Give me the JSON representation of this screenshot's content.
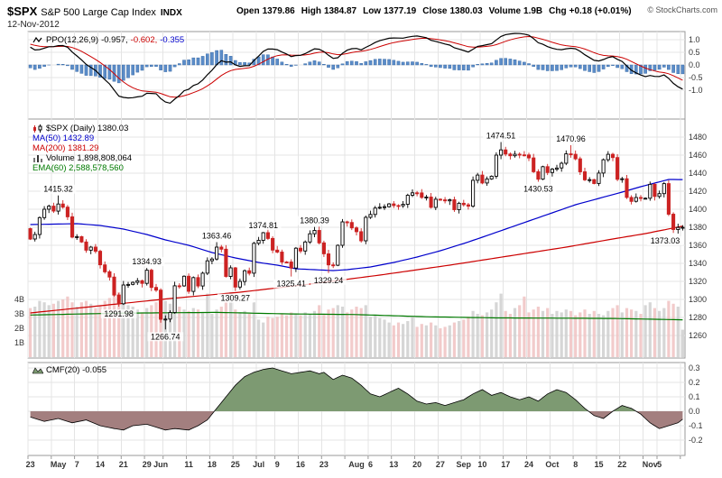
{
  "header": {
    "symbol": "$SPX",
    "name": "S&P 500 Large Cap Index",
    "exchange": "INDX",
    "date": "12-Nov-2012",
    "copyright": "© StockCharts.com",
    "quote": [
      {
        "label": "Open",
        "value": "1379.86"
      },
      {
        "label": "High",
        "value": "1384.87"
      },
      {
        "label": "Low",
        "value": "1377.19"
      },
      {
        "label": "Close",
        "value": "1380.03"
      },
      {
        "label": "Volume",
        "value": "1.9B"
      },
      {
        "label": "Chg",
        "value": "+0.18 (+0.01%)"
      }
    ]
  },
  "legends": {
    "ppo": {
      "label": "PPO(12,26,9)",
      "v1": "-0.957,",
      "v2": "-0.602,",
      "v3": "-0.355"
    },
    "main": {
      "spx": "$SPX (Daily) 1380.03",
      "ma50": "MA(50) 1432.89",
      "ma200": "MA(200) 1381.29",
      "volume": "Volume 1,898,808,064",
      "ema": "EMA(60) 2,588,578,560"
    },
    "cmf": "CMF(20) -0.055"
  },
  "chart_data": {
    "type": "candlestick",
    "title": "$SPX S&P 500 Large Cap Index",
    "panels": [
      "PPO(12,26,9)",
      "price+volume",
      "CMF(20)"
    ],
    "axes": {
      "ppo": {
        "ticks": [
          1.0,
          0.5,
          0.0,
          -0.5,
          -1.0
        ]
      },
      "main": {
        "tick_min": 1260,
        "tick_max": 1480,
        "step": 20
      },
      "vol": {
        "ticks": [
          "1B",
          "2B",
          "3B",
          "4B"
        ]
      },
      "cmf": {
        "ticks": [
          0.3,
          0.2,
          0.1,
          0.0,
          -0.1,
          -0.2
        ]
      }
    },
    "x_labels": [
      [
        0,
        "23"
      ],
      [
        6,
        "May"
      ],
      [
        10,
        "7"
      ],
      [
        15,
        "14"
      ],
      [
        20,
        "21"
      ],
      [
        25,
        "29"
      ],
      [
        28,
        "Jun"
      ],
      [
        34,
        "11"
      ],
      [
        39,
        "18"
      ],
      [
        44,
        "25"
      ],
      [
        49,
        "Jul"
      ],
      [
        53,
        "9"
      ],
      [
        58,
        "16"
      ],
      [
        63,
        "23"
      ],
      [
        70,
        "Aug"
      ],
      [
        73,
        "6"
      ],
      [
        78,
        "13"
      ],
      [
        83,
        "20"
      ],
      [
        88,
        "27"
      ],
      [
        93,
        "Sep"
      ],
      [
        97,
        "10"
      ],
      [
        102,
        "17"
      ],
      [
        107,
        "24"
      ],
      [
        112,
        "Oct"
      ],
      [
        117,
        "8"
      ],
      [
        122,
        "15"
      ],
      [
        127,
        "22"
      ],
      [
        133,
        "Nov"
      ],
      [
        135,
        "5"
      ]
    ],
    "week_starts": [
      0,
      5,
      10,
      15,
      20,
      25,
      29,
      34,
      39,
      44,
      49,
      53,
      58,
      63,
      68,
      73,
      78,
      83,
      88,
      93,
      97,
      102,
      107,
      112,
      117,
      122,
      127,
      132,
      135,
      140
    ],
    "price": {
      "prev_close": 1378.53,
      "closes": [
        1366.94,
        1371.97,
        1390.69,
        1399.98,
        1403.36,
        1397.91,
        1405.82,
        1402.31,
        1391.57,
        1369.1,
        1369.58,
        1363.72,
        1354.58,
        1357.99,
        1353.39,
        1338.35,
        1330.66,
        1324.8,
        1304.86,
        1295.22,
        1315.99,
        1316.63,
        1318.86,
        1320.68,
        1317.82,
        1332.42,
        1313.32,
        1310.33,
        1278.04,
        1278.18,
        1285.5,
        1315.13,
        1314.99,
        1325.66,
        1308.93,
        1324.18,
        1314.88,
        1329.1,
        1342.84,
        1344.78,
        1357.98,
        1355.69,
        1325.51,
        1335.02,
        1313.72,
        1319.99,
        1331.85,
        1329.04,
        1362.16,
        1365.51,
        1374.02,
        1367.58,
        1354.68,
        1352.46,
        1341.47,
        1341.45,
        1334.76,
        1356.78,
        1353.64,
        1363.67,
        1372.78,
        1376.51,
        1362.66,
        1350.52,
        1338.31,
        1337.89,
        1360.02,
        1385.97,
        1385.3,
        1379.32,
        1375.14,
        1365.0,
        1390.99,
        1394.23,
        1401.35,
        1402.22,
        1402.8,
        1405.87,
        1404.11,
        1403.93,
        1405.53,
        1415.51,
        1418.16,
        1418.13,
        1413.17,
        1413.49,
        1402.08,
        1411.13,
        1410.44,
        1409.3,
        1410.49,
        1399.48,
        1406.58,
        1404.94,
        1403.44,
        1432.12,
        1437.92,
        1429.08,
        1433.56,
        1436.56,
        1459.99,
        1465.77,
        1461.19,
        1459.32,
        1461.05,
        1460.26,
        1460.15,
        1456.89,
        1441.59,
        1433.32,
        1447.15,
        1440.67,
        1444.49,
        1445.75,
        1450.99,
        1461.4,
        1460.93,
        1455.88,
        1441.48,
        1432.56,
        1432.84,
        1428.59,
        1440.13,
        1454.92,
        1460.91,
        1457.34,
        1433.19,
        1433.82,
        1413.11,
        1408.75,
        1412.97,
        1411.94,
        1412.16,
        1427.59,
        1414.2,
        1417.26,
        1428.39,
        1394.53,
        1377.51,
        1379.85,
        1380.03
      ],
      "high_overrides": {
        "6": 1415.32,
        "25": 1334.93,
        "40": 1363.46,
        "50": 1374.81,
        "61": 1380.39,
        "101": 1474.51,
        "116": 1470.96
      },
      "low_overrides": {
        "19": 1291.98,
        "29": 1266.74,
        "44": 1309.27,
        "56": 1325.41,
        "64": 1329.24,
        "109": 1430.53,
        "139": 1373.03
      }
    },
    "volume": [
      3.4,
      3.5,
      3.9,
      3.8,
      3.6,
      3.7,
      3.9,
      4.0,
      4.2,
      3.8,
      3.5,
      3.8,
      3.9,
      3.7,
      3.4,
      3.6,
      3.9,
      4.1,
      4.3,
      4.5,
      3.8,
      3.6,
      3.5,
      3.3,
      3.1,
      3.4,
      3.6,
      3.8,
      4.0,
      3.9,
      3.7,
      3.8,
      3.5,
      3.3,
      3.2,
      3.4,
      3.3,
      3.1,
      4.4,
      3.0,
      3.3,
      3.5,
      4.0,
      4.5,
      3.3,
      3.1,
      3.2,
      3.0,
      3.8,
      2.6,
      2.4,
      2.8,
      2.7,
      2.8,
      3.0,
      2.9,
      3.1,
      3.0,
      2.9,
      3.1,
      3.0,
      3.2,
      3.6,
      3.0,
      3.3,
      3.4,
      3.6,
      3.5,
      3.1,
      3.3,
      3.5,
      3.4,
      3.6,
      2.8,
      2.9,
      2.7,
      2.6,
      2.4,
      2.2,
      2.4,
      2.3,
      2.5,
      2.8,
      2.1,
      2.3,
      2.2,
      2.4,
      2.2,
      2.0,
      2.1,
      2.2,
      2.4,
      2.5,
      2.6,
      2.8,
      3.2,
      3.0,
      2.9,
      3.1,
      3.3,
      3.8,
      4.4,
      3.2,
      3.0,
      3.4,
      3.6,
      4.2,
      3.1,
      3.3,
      3.5,
      3.2,
      3.4,
      3.0,
      3.2,
      3.1,
      3.3,
      3.2,
      2.9,
      3.1,
      3.3,
      3.0,
      3.2,
      3.0,
      2.9,
      3.2,
      3.4,
      3.6,
      3.1,
      3.4,
      3.3,
      3.2,
      3.0,
      3.6,
      3.8,
      3.4,
      3.2,
      3.4,
      3.9,
      3.7,
      3.5,
      1.9
    ],
    "ma50": [
      [
        0,
        1383
      ],
      [
        10,
        1384
      ],
      [
        15,
        1382
      ],
      [
        20,
        1378
      ],
      [
        25,
        1372
      ],
      [
        29,
        1366
      ],
      [
        34,
        1360
      ],
      [
        39,
        1352
      ],
      [
        44,
        1346
      ],
      [
        49,
        1341
      ],
      [
        53,
        1338
      ],
      [
        57,
        1334
      ],
      [
        61,
        1333
      ],
      [
        65,
        1332
      ],
      [
        68,
        1333
      ],
      [
        73,
        1336
      ],
      [
        78,
        1341
      ],
      [
        83,
        1347
      ],
      [
        88,
        1354
      ],
      [
        93,
        1362
      ],
      [
        97,
        1369
      ],
      [
        102,
        1378
      ],
      [
        107,
        1387
      ],
      [
        112,
        1396
      ],
      [
        117,
        1405
      ],
      [
        122,
        1412
      ],
      [
        127,
        1419
      ],
      [
        131,
        1425
      ],
      [
        134,
        1429
      ],
      [
        137,
        1433
      ],
      [
        140,
        1432.89
      ]
    ],
    "ma200": [
      [
        0,
        1285
      ],
      [
        15,
        1293
      ],
      [
        30,
        1301
      ],
      [
        45,
        1308
      ],
      [
        60,
        1317
      ],
      [
        75,
        1327
      ],
      [
        90,
        1338
      ],
      [
        105,
        1350
      ],
      [
        115,
        1358
      ],
      [
        125,
        1367
      ],
      [
        132,
        1373
      ],
      [
        140,
        1381.29
      ]
    ],
    "vol_ema60": [
      [
        0,
        2.92
      ],
      [
        20,
        3.05
      ],
      [
        40,
        3.1
      ],
      [
        55,
        3.0
      ],
      [
        70,
        2.95
      ],
      [
        85,
        2.8
      ],
      [
        100,
        2.72
      ],
      [
        115,
        2.7
      ],
      [
        125,
        2.68
      ],
      [
        140,
        2.59
      ]
    ],
    "ppo_seed": {
      "ema12": 1385,
      "ema26": 1373,
      "signal": 0.85
    },
    "ppo_last": {
      "ppo": -0.957,
      "signal": -0.602,
      "hist": -0.355
    },
    "cmf": [
      [
        0,
        -0.04
      ],
      [
        3,
        -0.07
      ],
      [
        6,
        -0.05
      ],
      [
        9,
        -0.08
      ],
      [
        12,
        -0.06
      ],
      [
        15,
        -0.1
      ],
      [
        18,
        -0.12
      ],
      [
        20,
        -0.13
      ],
      [
        22,
        -0.1
      ],
      [
        25,
        -0.09
      ],
      [
        27,
        -0.11
      ],
      [
        29,
        -0.13
      ],
      [
        31,
        -0.12
      ],
      [
        34,
        -0.13
      ],
      [
        36,
        -0.1
      ],
      [
        38,
        -0.06
      ],
      [
        40,
        0.02
      ],
      [
        42,
        0.1
      ],
      [
        44,
        0.18
      ],
      [
        46,
        0.24
      ],
      [
        48,
        0.27
      ],
      [
        50,
        0.29
      ],
      [
        52,
        0.3
      ],
      [
        54,
        0.28
      ],
      [
        56,
        0.26
      ],
      [
        58,
        0.27
      ],
      [
        60,
        0.28
      ],
      [
        62,
        0.26
      ],
      [
        63,
        0.27
      ],
      [
        65,
        0.22
      ],
      [
        67,
        0.25
      ],
      [
        69,
        0.23
      ],
      [
        71,
        0.18
      ],
      [
        73,
        0.12
      ],
      [
        75,
        0.1
      ],
      [
        77,
        0.13
      ],
      [
        79,
        0.16
      ],
      [
        81,
        0.12
      ],
      [
        83,
        0.07
      ],
      [
        85,
        0.05
      ],
      [
        87,
        0.06
      ],
      [
        89,
        0.04
      ],
      [
        91,
        0.06
      ],
      [
        93,
        0.08
      ],
      [
        95,
        0.12
      ],
      [
        97,
        0.15
      ],
      [
        99,
        0.11
      ],
      [
        101,
        0.13
      ],
      [
        103,
        0.1
      ],
      [
        105,
        0.08
      ],
      [
        107,
        0.1
      ],
      [
        109,
        0.07
      ],
      [
        111,
        0.12
      ],
      [
        113,
        0.15
      ],
      [
        115,
        0.13
      ],
      [
        117,
        0.08
      ],
      [
        119,
        0.02
      ],
      [
        121,
        -0.03
      ],
      [
        123,
        -0.05
      ],
      [
        125,
        0.0
      ],
      [
        127,
        0.04
      ],
      [
        129,
        0.02
      ],
      [
        131,
        -0.02
      ],
      [
        133,
        -0.08
      ],
      [
        135,
        -0.12
      ],
      [
        137,
        -0.1
      ],
      [
        139,
        -0.08
      ],
      [
        140,
        -0.055
      ]
    ],
    "cmf_last": -0.055,
    "price_labels": [
      {
        "i": 6,
        "v": 1415.32,
        "side": "above"
      },
      {
        "i": 19,
        "v": 1291.98,
        "side": "below"
      },
      {
        "i": 25,
        "v": 1334.93,
        "side": "above"
      },
      {
        "i": 29,
        "v": 1266.74,
        "side": "below"
      },
      {
        "i": 40,
        "v": 1363.46,
        "side": "above"
      },
      {
        "i": 44,
        "v": 1309.27,
        "side": "below"
      },
      {
        "i": 50,
        "v": 1374.81,
        "side": "above"
      },
      {
        "i": 56,
        "v": 1325.41,
        "side": "below"
      },
      {
        "i": 61,
        "v": 1380.39,
        "side": "above"
      },
      {
        "i": 64,
        "v": 1329.24,
        "side": "below"
      },
      {
        "i": 101,
        "v": 1474.51,
        "side": "above"
      },
      {
        "i": 109,
        "v": 1430.53,
        "side": "below"
      },
      {
        "i": 116,
        "v": 1470.96,
        "side": "above"
      },
      {
        "i": 139,
        "v": 1373.03,
        "side": "below"
      }
    ],
    "colors": {
      "up_candle": "#000000",
      "down_candle": "#cc2222",
      "ma50": "#0000cc",
      "ma200": "#cc0000",
      "vol_ema": "#007a00",
      "vol_up": "#cfcfcf",
      "vol_down": "#f0c2c2",
      "ppo_hist_fill": "#5b8cc8",
      "ppo_hist_stroke": "#2f62a0",
      "ppo_line": "#000000",
      "ppo_signal": "#cc0000",
      "cmf_pos": "#7d9a72",
      "cmf_neg": "#a37f7f",
      "grid": "#e4e4e4",
      "frame": "#999999"
    }
  }
}
